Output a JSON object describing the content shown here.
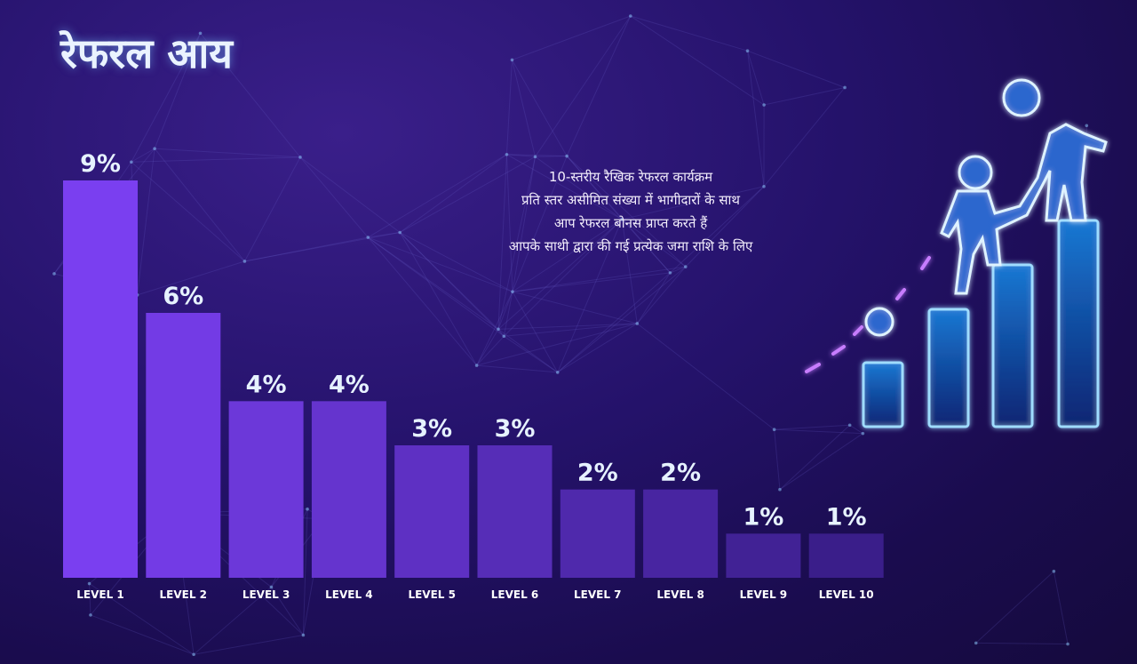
{
  "header": {
    "title": "रेफरल आय"
  },
  "description": {
    "lines": [
      "10-स्तरीय रैखिक रेफरल कार्यक्रम",
      "प्रति स्तर असीमित संख्या में भागीदारों के साथ",
      "आप रेफरल बोनस प्राप्त करते हैं",
      "आपके साथी द्वारा की गई प्रत्येक जमा राशि के लिए"
    ]
  },
  "colors": {
    "bar_top": "#7a3ff0",
    "bar_bottom": "#3a1e8a",
    "value_text": "#e6f2ff",
    "accent_glow": "#4fb8ff"
  },
  "icons": {
    "illustration": "people-climbing-bar-chart-icon"
  },
  "chart_data": {
    "type": "bar",
    "categories": [
      "LEVEL 1",
      "LEVEL 2",
      "LEVEL 3",
      "LEVEL 4",
      "LEVEL 5",
      "LEVEL 6",
      "LEVEL 7",
      "LEVEL 8",
      "LEVEL 9",
      "LEVEL 10"
    ],
    "values": [
      9,
      6,
      4,
      4,
      3,
      3,
      2,
      2,
      1,
      1
    ],
    "value_labels": [
      "9%",
      "6%",
      "4%",
      "4%",
      "3%",
      "3%",
      "2%",
      "2%",
      "1%",
      "1%"
    ],
    "title": "",
    "xlabel": "",
    "ylabel": "",
    "grid": false,
    "legend": "none"
  }
}
